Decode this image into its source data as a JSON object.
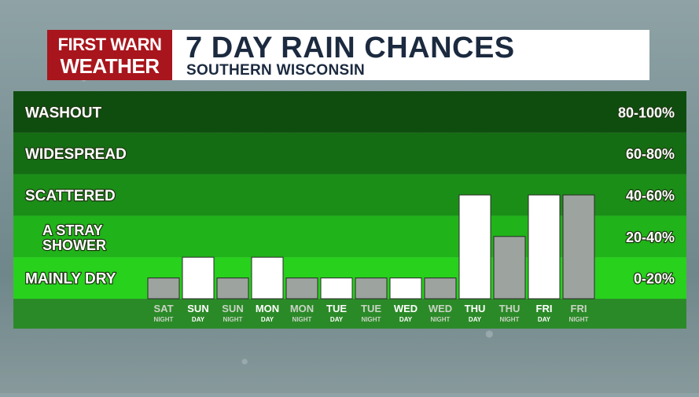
{
  "header": {
    "logo_line1": "FIRST WARN",
    "logo_line2": "WEATHER",
    "title": "7 DAY RAIN CHANCES",
    "subtitle": "SOUTHERN WISCONSIN"
  },
  "chart_data": {
    "type": "bar",
    "ylim": [
      0,
      100
    ],
    "bands": [
      {
        "label": "WASHOUT",
        "range": "80-100%",
        "from": 80,
        "to": 100,
        "color": "#0f4d0f"
      },
      {
        "label": "WIDESPREAD",
        "range": "60-80%",
        "from": 60,
        "to": 80,
        "color": "#156d13"
      },
      {
        "label": "SCATTERED",
        "range": "40-60%",
        "from": 40,
        "to": 60,
        "color": "#1b8e17"
      },
      {
        "label": "A STRAY|SHOWER",
        "range": "20-40%",
        "from": 20,
        "to": 40,
        "color": "#21b31a"
      },
      {
        "label": "MAINLY DRY",
        "range": "0-20%",
        "from": 0,
        "to": 20,
        "color": "#27d11c"
      }
    ],
    "categories": [
      {
        "top": "SAT",
        "bottom": "NIGHT",
        "period": "night"
      },
      {
        "top": "SUN",
        "bottom": "DAY",
        "period": "day"
      },
      {
        "top": "SUN",
        "bottom": "NIGHT",
        "period": "night"
      },
      {
        "top": "MON",
        "bottom": "DAY",
        "period": "day"
      },
      {
        "top": "MON",
        "bottom": "NIGHT",
        "period": "night"
      },
      {
        "top": "TUE",
        "bottom": "DAY",
        "period": "day"
      },
      {
        "top": "TUE",
        "bottom": "NIGHT",
        "period": "night"
      },
      {
        "top": "WED",
        "bottom": "DAY",
        "period": "day"
      },
      {
        "top": "WED",
        "bottom": "NIGHT",
        "period": "night"
      },
      {
        "top": "THU",
        "bottom": "DAY",
        "period": "day"
      },
      {
        "top": "THU",
        "bottom": "NIGHT",
        "period": "night"
      },
      {
        "top": "FRI",
        "bottom": "DAY",
        "period": "day"
      },
      {
        "top": "FRI",
        "bottom": "NIGHT",
        "period": "night"
      }
    ],
    "values": [
      10,
      20,
      10,
      20,
      10,
      10,
      10,
      10,
      10,
      50,
      30,
      50,
      50
    ],
    "colors": {
      "day_bar": "#ffffff",
      "night_bar": "#9da39f",
      "day_text": "#ffffff",
      "night_text": "#c9d3c4",
      "axis_strip": "#2b8a28"
    }
  }
}
